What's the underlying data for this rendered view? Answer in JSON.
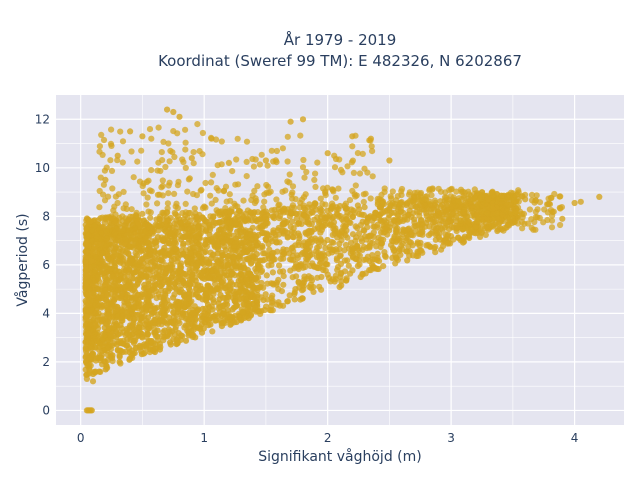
{
  "chart_data": {
    "type": "scatter",
    "title": "År 1979 - 2019",
    "subtitle": "Koordinat (Sweref 99 TM): E 482326, N 6202867",
    "xlabel": "Signifikant våghöjd (m)",
    "ylabel": "Vågperiod (s)",
    "xlim": [
      -0.2,
      4.4
    ],
    "ylim": [
      -0.6,
      13
    ],
    "x_ticks": [
      0,
      1,
      2,
      3,
      4
    ],
    "y_ticks": [
      0,
      2,
      4,
      6,
      8,
      10,
      12
    ],
    "grid": true,
    "legend": "none",
    "point_color": "#D4A520",
    "background_color": "#E5E5F0",
    "point_count_approx": "dense cloud",
    "series": [
      {
        "points_sample": [
          [
            0.05,
            0.0
          ],
          [
            0.06,
            0.0
          ],
          [
            0.07,
            0.0
          ],
          [
            0.08,
            0.0
          ],
          [
            0.09,
            0.0
          ],
          [
            0.05,
            1.3
          ],
          [
            0.1,
            1.2
          ],
          [
            0.15,
            1.6
          ],
          [
            0.2,
            2.0
          ],
          [
            0.3,
            2.5
          ],
          [
            0.5,
            3.0
          ],
          [
            0.8,
            3.6
          ],
          [
            1.0,
            4.0
          ],
          [
            1.3,
            4.6
          ],
          [
            1.6,
            5.0
          ],
          [
            2.0,
            5.6
          ],
          [
            2.4,
            6.2
          ],
          [
            2.8,
            6.8
          ],
          [
            3.2,
            7.3
          ],
          [
            3.5,
            7.8
          ],
          [
            0.2,
            9.5
          ],
          [
            0.3,
            10.5
          ],
          [
            0.4,
            11.5
          ],
          [
            0.5,
            11.3
          ],
          [
            0.7,
            12.4
          ],
          [
            0.75,
            12.3
          ],
          [
            0.8,
            12.1
          ],
          [
            0.9,
            10.4
          ],
          [
            1.2,
            10.2
          ],
          [
            1.5,
            10.3
          ],
          [
            1.7,
            11.9
          ],
          [
            1.8,
            12.0
          ],
          [
            2.2,
            11.3
          ],
          [
            2.35,
            11.2
          ],
          [
            2.0,
            10.6
          ],
          [
            2.5,
            10.3
          ],
          [
            3.3,
            8.7
          ],
          [
            3.6,
            8.7
          ],
          [
            3.8,
            8.5
          ],
          [
            4.0,
            8.55
          ],
          [
            4.05,
            8.6
          ],
          [
            4.2,
            8.8
          ],
          [
            3.9,
            7.9
          ],
          [
            3.0,
            9.1
          ],
          [
            2.7,
            8.8
          ],
          [
            0.25,
            7.9
          ],
          [
            0.5,
            8.1
          ],
          [
            1.0,
            8.4
          ],
          [
            1.5,
            8.2
          ],
          [
            2.0,
            8.0
          ],
          [
            0.1,
            6.5
          ],
          [
            0.2,
            5.2
          ],
          [
            0.6,
            6.3
          ],
          [
            1.1,
            6.0
          ],
          [
            1.8,
            6.5
          ]
        ]
      }
    ]
  }
}
